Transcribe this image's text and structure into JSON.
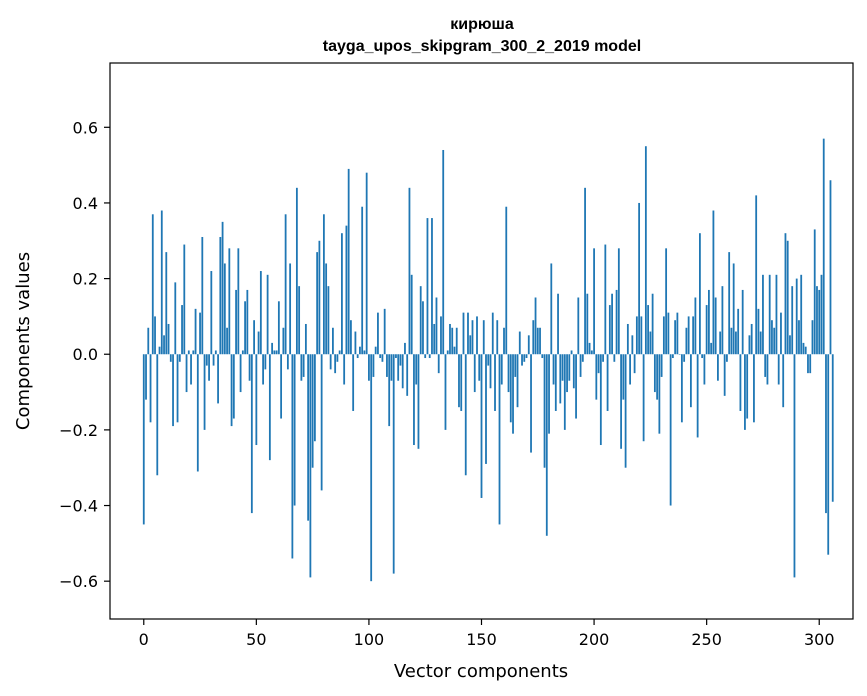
{
  "chart_data": {
    "type": "bar",
    "title": "кирюша",
    "subtitle": "tayga_upos_skipgram_300_2_2019 model",
    "xlabel": "Vector components",
    "ylabel": "Components values",
    "xlim": [
      -15,
      315
    ],
    "ylim": [
      -0.7,
      0.77
    ],
    "xticks": [
      0,
      50,
      100,
      150,
      200,
      250,
      300
    ],
    "yticks": [
      -0.6,
      -0.4,
      -0.2,
      0.0,
      0.2,
      0.4,
      0.6
    ],
    "ytick_labels": [
      "−0.6",
      "−0.4",
      "−0.2",
      "0.0",
      "0.2",
      "0.4",
      "0.6"
    ],
    "bar_color": "#1f77b4",
    "grid": false,
    "values": [
      -0.45,
      -0.12,
      0.07,
      -0.18,
      0.37,
      0.1,
      -0.32,
      0.02,
      0.38,
      0.05,
      0.27,
      0.08,
      -0.02,
      -0.19,
      0.19,
      -0.18,
      -0.02,
      0.13,
      0.29,
      -0.1,
      0.01,
      -0.08,
      0.01,
      0.12,
      -0.31,
      0.11,
      0.31,
      -0.2,
      -0.03,
      -0.07,
      0.22,
      -0.03,
      0.01,
      -0.13,
      0.31,
      0.35,
      0.24,
      0.07,
      0.28,
      -0.19,
      -0.17,
      0.17,
      0.28,
      -0.1,
      0.01,
      0.14,
      0.17,
      -0.07,
      -0.42,
      0.09,
      -0.24,
      0.06,
      0.22,
      -0.08,
      -0.04,
      0.21,
      -0.28,
      0.03,
      0.01,
      0.01,
      0.14,
      -0.17,
      0.07,
      0.37,
      -0.04,
      0.24,
      -0.54,
      -0.4,
      0.44,
      0.18,
      -0.07,
      -0.06,
      0.08,
      -0.44,
      -0.59,
      -0.3,
      -0.23,
      0.27,
      0.3,
      -0.36,
      0.37,
      0.24,
      0.18,
      -0.04,
      0.07,
      -0.05,
      -0.02,
      0.01,
      0.32,
      -0.08,
      0.34,
      0.49,
      0.09,
      -0.15,
      0.06,
      -0.01,
      0.02,
      0.39,
      0.01,
      0.48,
      -0.07,
      -0.6,
      -0.06,
      0.02,
      0.11,
      -0.01,
      -0.02,
      0.12,
      -0.06,
      -0.19,
      -0.07,
      -0.58,
      -0.01,
      -0.07,
      -0.03,
      -0.09,
      0.03,
      -0.11,
      0.44,
      0.21,
      -0.24,
      -0.08,
      -0.25,
      0.18,
      0.14,
      -0.01,
      0.36,
      -0.01,
      0.36,
      0.08,
      0.15,
      -0.05,
      0.1,
      0.54,
      -0.2,
      0.01,
      0.08,
      0.07,
      0.02,
      0.07,
      -0.14,
      -0.15,
      0.11,
      -0.32,
      0.11,
      0.05,
      0.09,
      -0.1,
      0.1,
      -0.07,
      -0.38,
      0.09,
      -0.29,
      -0.03,
      -0.09,
      0.11,
      -0.15,
      0.09,
      -0.45,
      -0.08,
      0.07,
      0.39,
      -0.1,
      -0.18,
      -0.21,
      -0.06,
      -0.14,
      0.06,
      -0.03,
      -0.02,
      -0.01,
      0.05,
      -0.26,
      0.09,
      0.15,
      0.07,
      0.07,
      -0.01,
      -0.3,
      -0.48,
      -0.21,
      0.24,
      -0.08,
      -0.15,
      0.16,
      -0.13,
      -0.07,
      -0.2,
      -0.1,
      -0.07,
      0.01,
      -0.09,
      -0.17,
      0.15,
      -0.06,
      -0.02,
      0.44,
      0.16,
      0.03,
      0.01,
      0.28,
      -0.12,
      -0.05,
      -0.24,
      -0.02,
      0.29,
      -0.15,
      0.13,
      0.16,
      -0.02,
      0.17,
      0.28,
      -0.25,
      -0.12,
      -0.3,
      0.08,
      -0.08,
      0.05,
      -0.05,
      0.1,
      0.4,
      0.1,
      -0.23,
      0.55,
      0.13,
      0.06,
      0.16,
      -0.1,
      -0.12,
      -0.21,
      -0.06,
      0.1,
      0.28,
      0.11,
      -0.4,
      -0.01,
      0.09,
      0.11,
      0.0,
      -0.18,
      -0.02,
      0.07,
      0.1,
      -0.14,
      0.1,
      0.15,
      -0.22,
      0.32,
      -0.01,
      -0.08,
      0.13,
      0.17,
      0.03,
      0.38,
      0.15,
      -0.07,
      0.06,
      0.18,
      -0.11,
      -0.02,
      0.27,
      0.07,
      0.24,
      0.06,
      0.12,
      -0.15,
      0.17,
      -0.2,
      -0.17,
      0.05,
      0.08,
      -0.18,
      0.42,
      0.12,
      0.06,
      0.21,
      -0.06,
      -0.08,
      0.21,
      0.09,
      0.07,
      0.21,
      -0.08,
      0.11,
      -0.14,
      0.32,
      0.3,
      0.05,
      0.18,
      -0.59,
      0.2,
      0.09,
      0.21,
      0.03,
      0.02,
      -0.05,
      -0.05,
      0.09,
      0.33,
      0.18,
      0.17,
      0.21,
      0.57,
      -0.42,
      -0.53,
      0.46,
      -0.39
    ]
  }
}
